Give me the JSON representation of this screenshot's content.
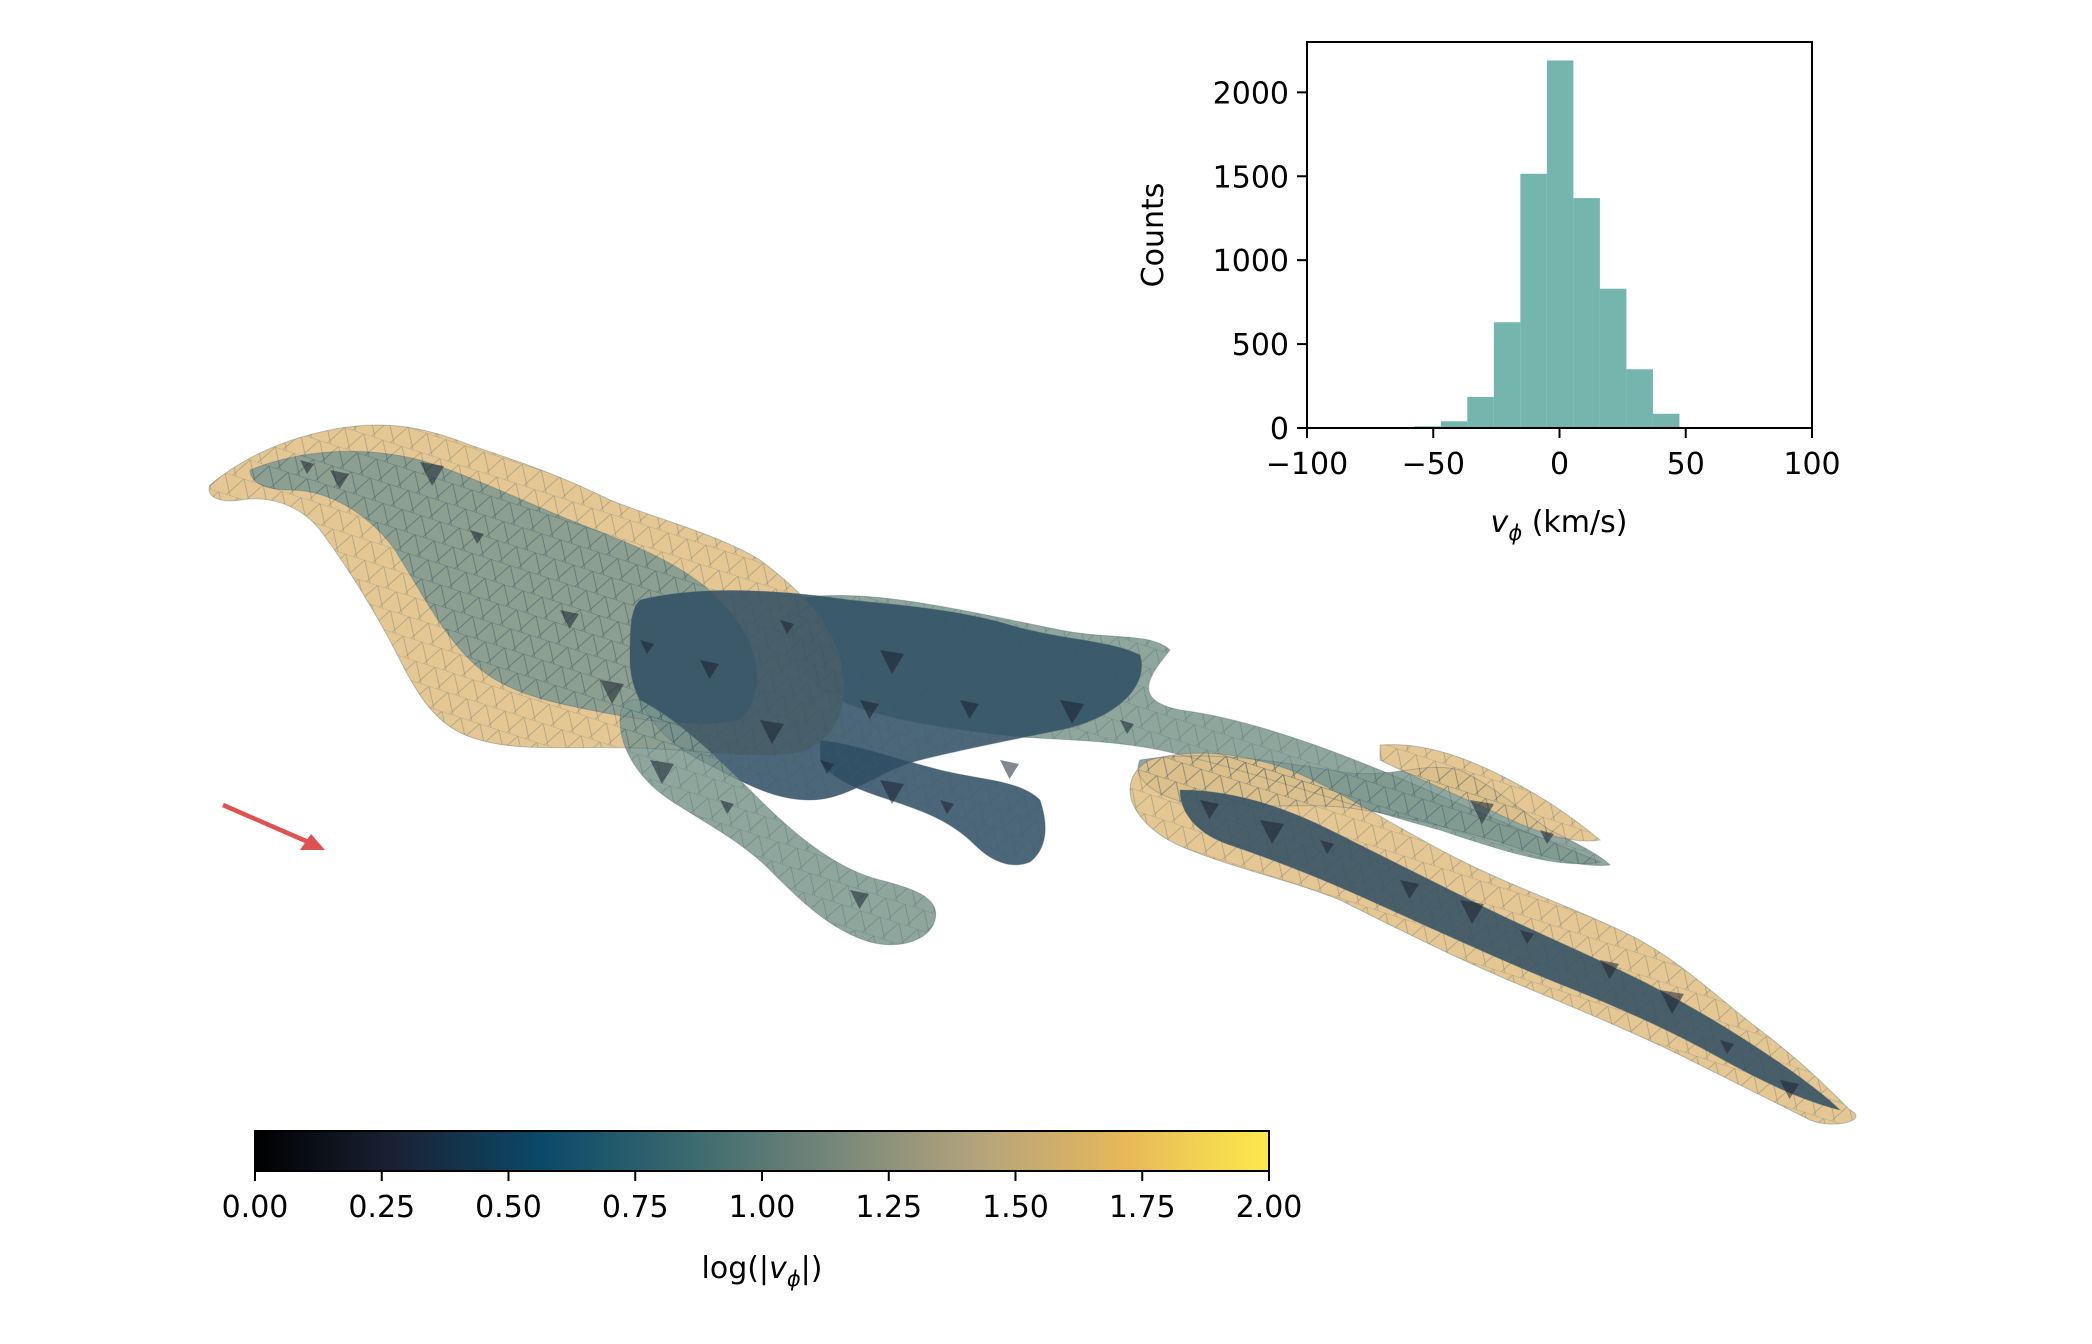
{
  "chart_data": [
    {
      "type": "bar",
      "role": "inset-histogram",
      "xlabel_var": "v",
      "xlabel_sub": "ϕ",
      "xlabel_unit": " (km/s)",
      "ylabel": "Counts",
      "xlim": [
        -100,
        100
      ],
      "ylim": [
        0,
        2300
      ],
      "xticks": [
        -100,
        -50,
        0,
        50,
        100
      ],
      "xtick_labels": [
        "−100",
        "−50",
        "0",
        "50",
        "100"
      ],
      "yticks": [
        0,
        500,
        1000,
        1500,
        2000
      ],
      "ytick_labels": [
        "0",
        "500",
        "1000",
        "1500",
        "2000"
      ],
      "bin_width": 10.5,
      "bins": [
        {
          "x0": -57.5,
          "count": 10
        },
        {
          "x0": -47.0,
          "count": 40
        },
        {
          "x0": -36.5,
          "count": 185
        },
        {
          "x0": -26.0,
          "count": 630
        },
        {
          "x0": -15.5,
          "count": 1515
        },
        {
          "x0": -5.0,
          "count": 2190
        },
        {
          "x0": 5.5,
          "count": 1370
        },
        {
          "x0": 16.0,
          "count": 830
        },
        {
          "x0": 26.5,
          "count": 350
        },
        {
          "x0": 37.0,
          "count": 85
        }
      ],
      "bar_color": "#74b6ad",
      "grid": false
    },
    {
      "type": "heatmap",
      "role": "colorbar",
      "label_prefix": "log(|",
      "label_var": "v",
      "label_sub": "ϕ",
      "label_suffix": "|)",
      "range": [
        0.0,
        2.0
      ],
      "ticks": [
        0.0,
        0.25,
        0.5,
        0.75,
        1.0,
        1.25,
        1.5,
        1.75,
        2.0
      ],
      "tick_labels": [
        "0.00",
        "0.25",
        "0.50",
        "0.75",
        "1.00",
        "1.25",
        "1.50",
        "1.75",
        "2.00"
      ],
      "colormap_stops": [
        "#000000",
        "#1a2336",
        "#0b4a6a",
        "#3b6a6e",
        "#76877a",
        "#b4a47c",
        "#e6b85a",
        "#fde94c"
      ]
    }
  ],
  "figure": {
    "surface_colors": {
      "light": "#e3c28a",
      "mid": "#7f9a8f",
      "dark": "#2d4c63",
      "darkest": "#1b2230"
    },
    "arrow_color": "#e05252"
  }
}
